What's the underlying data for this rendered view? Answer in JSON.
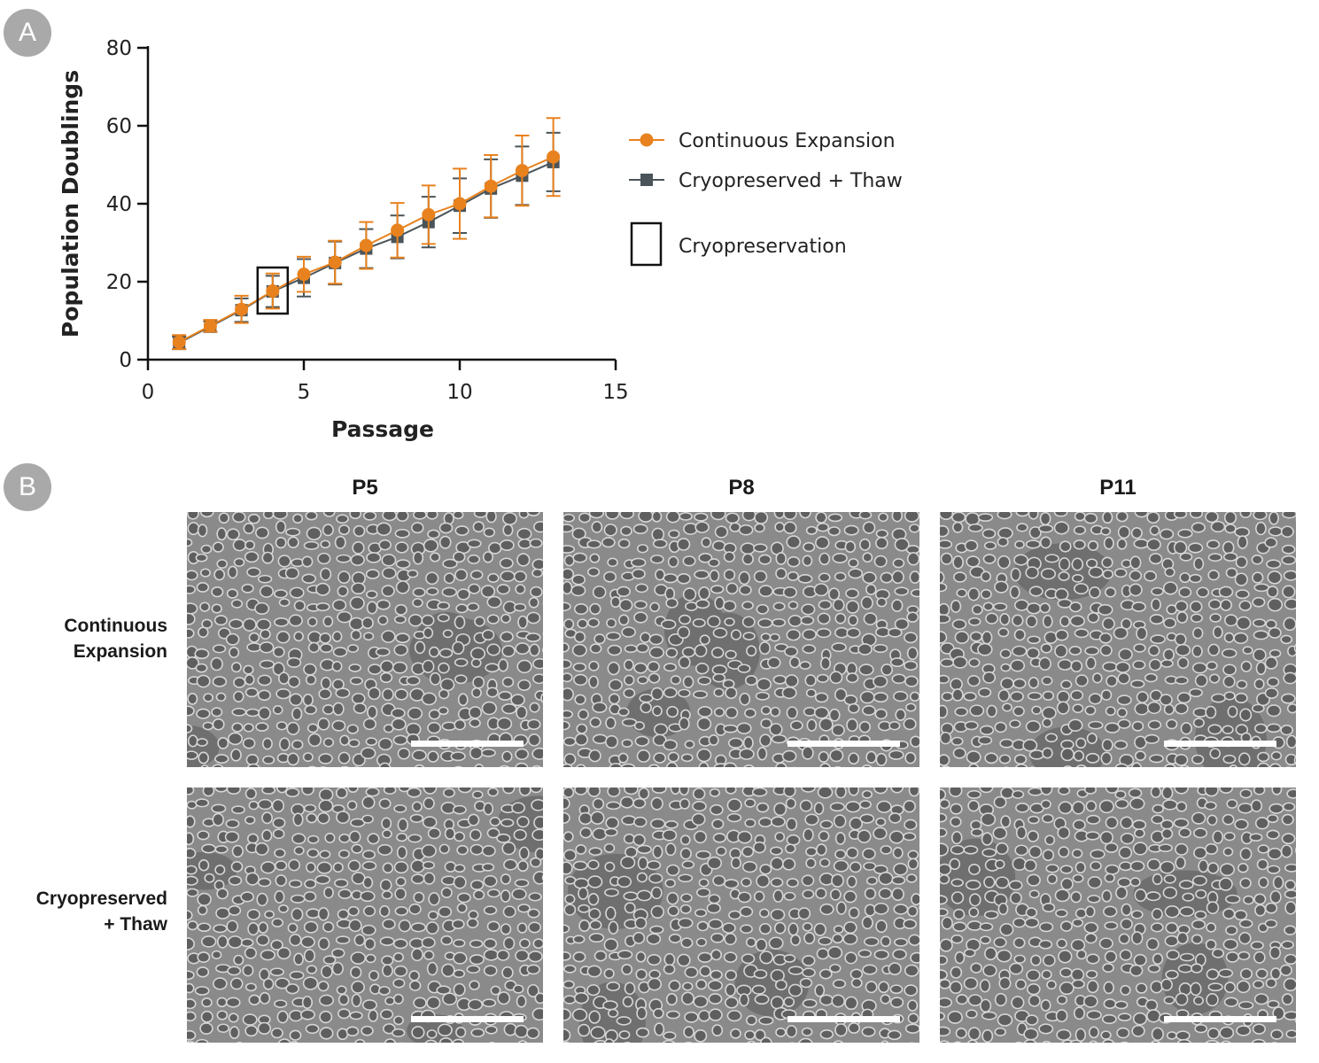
{
  "panels": {
    "a_label": "A",
    "b_label": "B"
  },
  "chart_data": {
    "type": "line",
    "xlabel": "Passage",
    "ylabel": "Population Doublings",
    "xlim": [
      0,
      15
    ],
    "ylim": [
      0,
      80
    ],
    "xticks": [
      "0",
      "5",
      "10",
      "15"
    ],
    "yticks": [
      "0",
      "20",
      "40",
      "60",
      "80"
    ],
    "grid": false,
    "legend_position": "right",
    "series": [
      {
        "name": "Continuous Expansion",
        "marker": "circle",
        "color": "#E8821E",
        "x": [
          1,
          2,
          3,
          4,
          5,
          6,
          7,
          8,
          9,
          10,
          11,
          12,
          13
        ],
        "y": [
          4.5,
          8.7,
          12.9,
          17.6,
          21.9,
          25.0,
          29.3,
          33.2,
          37.2,
          40.0,
          44.5,
          48.5,
          52.0
        ],
        "err": [
          1.8,
          1.5,
          3.5,
          4.5,
          4.5,
          5.5,
          6.0,
          7.0,
          7.5,
          9.0,
          8.0,
          9.0,
          10.0
        ]
      },
      {
        "name": "Cryopreserved + Thaw",
        "marker": "square",
        "color": "#4A5459",
        "x": [
          1,
          2,
          3,
          4,
          5,
          6,
          7,
          8,
          9,
          10,
          11,
          12,
          13
        ],
        "y": [
          4.3,
          8.5,
          12.7,
          17.5,
          21.0,
          24.8,
          28.5,
          31.5,
          35.3,
          39.5,
          43.9,
          47.2,
          50.7
        ],
        "err": [
          1.6,
          1.4,
          3.0,
          4.0,
          4.8,
          5.5,
          5.0,
          5.5,
          6.5,
          7.0,
          7.5,
          7.5,
          7.5
        ]
      }
    ],
    "annotations": [
      {
        "type": "box",
        "label": "Cryopreservation",
        "x": 4
      }
    ]
  },
  "micrographs": {
    "columns": [
      "P5",
      "P8",
      "P11"
    ],
    "rows": [
      "Continuous\nExpansion",
      "Cryopreserved\n+ Thaw"
    ]
  }
}
